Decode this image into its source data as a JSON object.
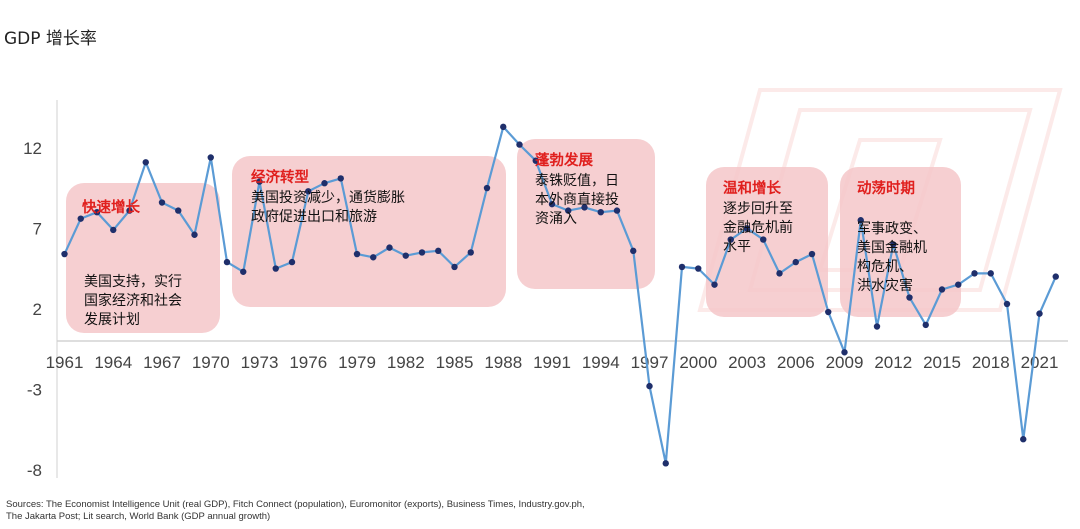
{
  "title": "GDP 增长率",
  "sources": [
    "Sources: The Economist Intelligence Unit (real GDP), Fitch Connect (population), Euromonitor (exports), Business Times, Industry.gov.ph,",
    "The Jakarta Post; Lit search, World Bank (GDP annual growth)"
  ],
  "colors": {
    "line": "#5b9bd5",
    "marker": "#1f2f6b",
    "box": "#f4c7c9",
    "accent": "#e0201e"
  },
  "chart_data": {
    "type": "line",
    "title": "GDP 增长率",
    "ylim": [
      -8,
      14
    ],
    "yticks": [
      12,
      7,
      2,
      -3,
      -8
    ],
    "xticks": [
      1961,
      1964,
      1967,
      1970,
      1973,
      1976,
      1979,
      1982,
      1985,
      1988,
      1991,
      1994,
      1997,
      2000,
      2003,
      2006,
      2009,
      2012,
      2015,
      2018,
      2021
    ],
    "x": [
      1961,
      1962,
      1963,
      1964,
      1965,
      1966,
      1967,
      1968,
      1969,
      1970,
      1971,
      1972,
      1973,
      1974,
      1975,
      1976,
      1977,
      1978,
      1979,
      1980,
      1981,
      1982,
      1983,
      1984,
      1985,
      1986,
      1987,
      1988,
      1989,
      1990,
      1991,
      1992,
      1993,
      1994,
      1995,
      1996,
      1997,
      1998,
      1999,
      2000,
      2001,
      2002,
      2003,
      2004,
      2005,
      2006,
      2007,
      2008,
      2009,
      2010,
      2011,
      2012,
      2013,
      2014,
      2015,
      2016,
      2017,
      2018,
      2019,
      2020,
      2021,
      2022
    ],
    "values": [
      5.4,
      7.6,
      8.0,
      6.9,
      8.1,
      11.1,
      8.6,
      8.1,
      6.6,
      11.4,
      4.9,
      4.3,
      9.9,
      4.5,
      4.9,
      9.3,
      9.8,
      10.1,
      5.4,
      5.2,
      5.8,
      5.3,
      5.5,
      5.6,
      4.6,
      5.5,
      9.5,
      13.3,
      12.2,
      11.2,
      8.5,
      8.1,
      8.3,
      8.0,
      8.1,
      5.6,
      -2.8,
      -7.6,
      4.6,
      4.5,
      3.5,
      6.3,
      7.0,
      6.3,
      4.2,
      4.9,
      5.4,
      1.8,
      -0.7,
      7.5,
      0.9,
      6.0,
      2.7,
      1.0,
      3.2,
      3.5,
      4.2,
      4.2,
      2.3,
      -6.1,
      1.7,
      4.0
    ],
    "annotations": [
      {
        "title": "快速增长",
        "lines": [
          "美国支持，实行",
          "国家经济和社会",
          "发展计划"
        ]
      },
      {
        "title": "经济转型",
        "lines": [
          "美国投资减少，通货膨胀",
          "政府促进出口和旅游"
        ]
      },
      {
        "title": "蓬勃发展",
        "lines": [
          "泰铢贬值，日",
          "本外商直接投",
          "资涌入"
        ]
      },
      {
        "title": "温和增长",
        "lines": [
          "逐步回升至",
          "金融危机前",
          "水平"
        ]
      },
      {
        "title": "动荡时期",
        "lines": [
          "军事政变、",
          "美国金融机",
          "构危机、",
          "洪水灾害"
        ]
      }
    ]
  }
}
